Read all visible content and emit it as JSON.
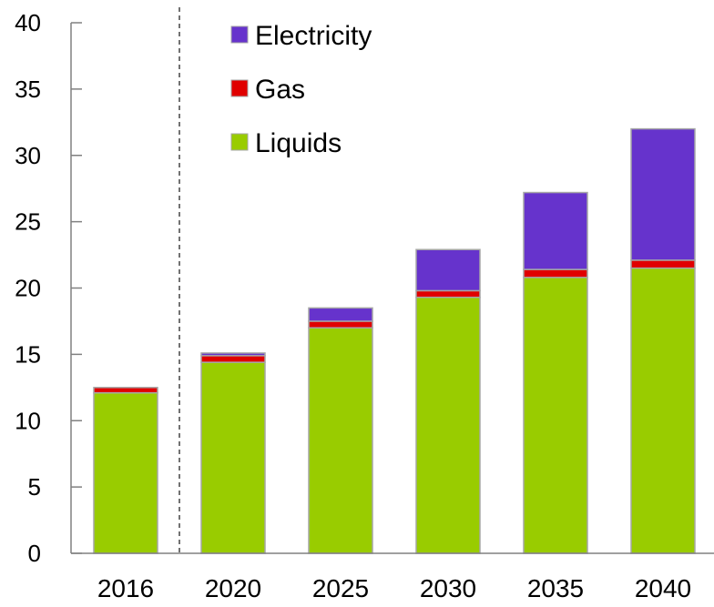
{
  "chart_data": {
    "type": "bar",
    "stacked": true,
    "categories": [
      "2016",
      "2020",
      "2025",
      "2030",
      "2035",
      "2040"
    ],
    "series": [
      {
        "name": "Liquids",
        "values": [
          12.1,
          14.4,
          17.0,
          19.3,
          20.8,
          21.5
        ],
        "color": "#99cc00"
      },
      {
        "name": "Gas",
        "values": [
          0.4,
          0.5,
          0.5,
          0.5,
          0.6,
          0.6
        ],
        "color": "#e00000"
      },
      {
        "name": "Electricity",
        "values": [
          0.0,
          0.2,
          1.0,
          3.1,
          5.8,
          9.9
        ],
        "color": "#6633cc"
      }
    ],
    "legend_order": [
      "Electricity",
      "Gas",
      "Liquids"
    ],
    "legend_position": "top-left",
    "ylim": [
      0,
      40
    ],
    "yticks": [
      "0",
      "5",
      "10",
      "15",
      "20",
      "25",
      "30",
      "35",
      "40"
    ],
    "grid": false,
    "separator_after_category": "2016",
    "title": "",
    "xlabel": "",
    "ylabel": ""
  }
}
